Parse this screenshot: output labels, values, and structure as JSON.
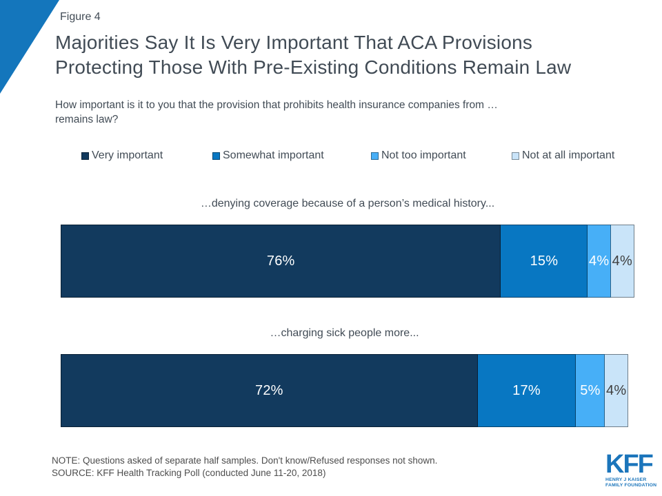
{
  "header": {
    "figure_label": "Figure 4",
    "title_line1": "Majorities Say It Is Very Important That ACA Provisions",
    "title_line2": "Protecting Those With Pre-Existing Conditions Remain Law",
    "subtitle_line1": "How important is it to you that the provision that prohibits health insurance companies from …",
    "subtitle_line2": "remains law?"
  },
  "chart_data": {
    "type": "bar",
    "orientation": "horizontal-stacked",
    "value_unit": "%",
    "xlim": [
      0,
      100
    ],
    "grid": false,
    "legend_position": "top",
    "categories": [
      "…denying coverage because of a person’s medical history...",
      "…charging sick people more..."
    ],
    "series": [
      {
        "name": "Very important",
        "color": "#123A5E",
        "label_color": "#FFFFFF",
        "values": [
          76,
          72
        ]
      },
      {
        "name": "Somewhat important",
        "color": "#0877C2",
        "label_color": "#FFFFFF",
        "values": [
          15,
          17
        ]
      },
      {
        "name": "Not too important",
        "color": "#47AFF7",
        "label_color": "#FFFFFF",
        "values": [
          4,
          5
        ]
      },
      {
        "name": "Not at all important",
        "color": "#C9E4F9",
        "label_color": "#3F3F3F",
        "values": [
          4,
          4
        ]
      }
    ]
  },
  "footer": {
    "note": "NOTE: Questions asked of separate half samples. Don't know/Refused responses not shown.",
    "source": "SOURCE: KFF Health Tracking Poll (conducted June 11-20, 2018)",
    "logo": {
      "acronym": "KFF",
      "line1": "HENRY J KAISER",
      "line2": "FAMILY FOUNDATION"
    }
  },
  "colors": {
    "accent_triangle": "#1476BC",
    "title_text": "#414B55",
    "footnote_text": "#4D4D4D",
    "logo_blue": "#1B75BB"
  }
}
